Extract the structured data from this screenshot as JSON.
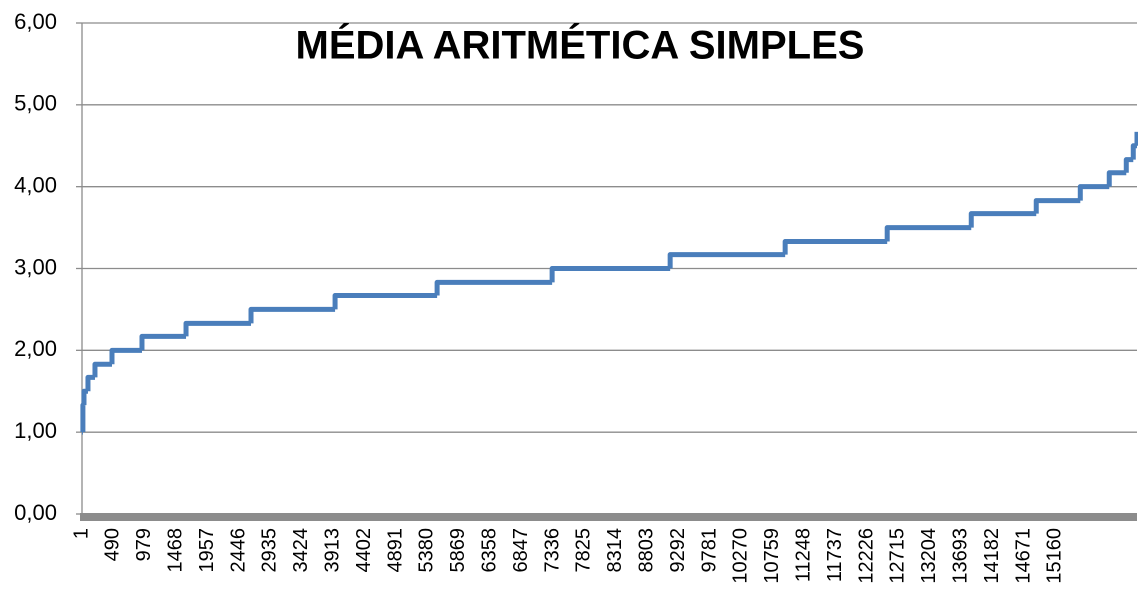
{
  "chart_data": {
    "type": "line",
    "title": "MÉDIA ARITMÉTICA SIMPLES",
    "step": "post",
    "grid": true,
    "series": [
      {
        "color": "#4a7ebb",
        "x": [
          1,
          15,
          32,
          94,
          203,
          468,
          935,
          1621,
          2633,
          3942,
          5531,
          7322,
          9160,
          10951,
          12540,
          13849,
          14861,
          15547,
          15998,
          16263,
          16372,
          16430
        ],
        "values": [
          1.0,
          1.33,
          1.5,
          1.67,
          1.83,
          2.0,
          2.17,
          2.33,
          2.5,
          2.67,
          2.83,
          3.0,
          3.17,
          3.33,
          3.5,
          3.67,
          3.83,
          4.0,
          4.17,
          4.33,
          4.5,
          4.67
        ]
      }
    ],
    "xlim": [
      1,
      16430
    ],
    "xticks": [
      1,
      490,
      979,
      1468,
      1957,
      2446,
      2935,
      3424,
      3913,
      4402,
      4891,
      5380,
      5869,
      6358,
      6847,
      7336,
      7825,
      8314,
      8803,
      9292,
      9781,
      10270,
      10759,
      11248,
      11737,
      12226,
      12715,
      13204,
      13693,
      14182,
      14671,
      15160
    ],
    "ylim": [
      0,
      6
    ],
    "yticks": [
      {
        "value": 0,
        "label": "0,00"
      },
      {
        "value": 1,
        "label": "1,00"
      },
      {
        "value": 2,
        "label": "2,00"
      },
      {
        "value": 3,
        "label": "3,00"
      },
      {
        "value": 4,
        "label": "4,00"
      },
      {
        "value": 5,
        "label": "5,00"
      },
      {
        "value": 6,
        "label": "6,00"
      }
    ]
  }
}
